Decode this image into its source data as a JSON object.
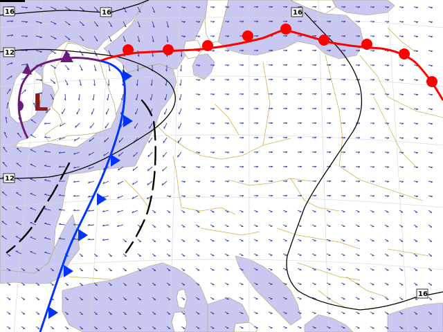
{
  "map": {
    "pressure_center": {
      "label": "L",
      "type": "low"
    },
    "isobar_labels": [
      {
        "text": "16"
      },
      {
        "text": "16"
      },
      {
        "text": "16"
      },
      {
        "text": "12"
      },
      {
        "text": "12"
      },
      {
        "text": "16"
      }
    ],
    "fronts": {
      "warm": {
        "color": "#ff0000"
      },
      "cold": {
        "color": "#0033ff"
      },
      "occluded": {
        "color": "#6a1b7a"
      },
      "trough": {
        "color": "#000000"
      }
    },
    "colors": {
      "sea": "#c8c8f0",
      "land": "#ffffff",
      "coast": "#b0a070",
      "border": "#d0b050",
      "grid": "#cccccc",
      "wind_arrow": "#3a3aa0"
    }
  }
}
